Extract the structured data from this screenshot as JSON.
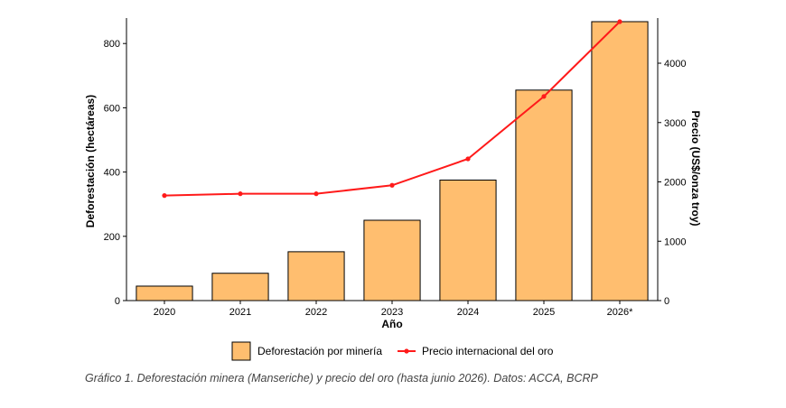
{
  "chart_data": {
    "type": "bar",
    "categories": [
      "2020",
      "2021",
      "2022",
      "2023",
      "2024",
      "2025",
      "2026*"
    ],
    "series": [
      {
        "name": "Deforestación por minería",
        "type": "bar",
        "axis": "left",
        "color": "#FFBE6F",
        "values": [
          45,
          85,
          152,
          250,
          375,
          655,
          868
        ]
      },
      {
        "name": "Precio internacional del oro",
        "type": "line",
        "axis": "right",
        "color": "#FF1A1A",
        "values": [
          1770,
          1800,
          1800,
          1943,
          2388,
          3440,
          4700
        ]
      }
    ],
    "xlabel": "Año",
    "ylabel": "Deforestación (hectáreas)",
    "y2label": "Precio (US$/onza troy)",
    "ylim": [
      0,
      868
    ],
    "y2lim": [
      0,
      4700
    ],
    "yticks": [
      0,
      200,
      400,
      600,
      800
    ],
    "y2ticks": [
      0,
      1000,
      2000,
      3000,
      4000
    ],
    "grid": false,
    "legend_position": "bottom"
  },
  "caption": "Gráfico  1. Deforestación minera (Manseriche) y precio del oro (hasta junio 2026). Datos: ACCA, BCRP"
}
